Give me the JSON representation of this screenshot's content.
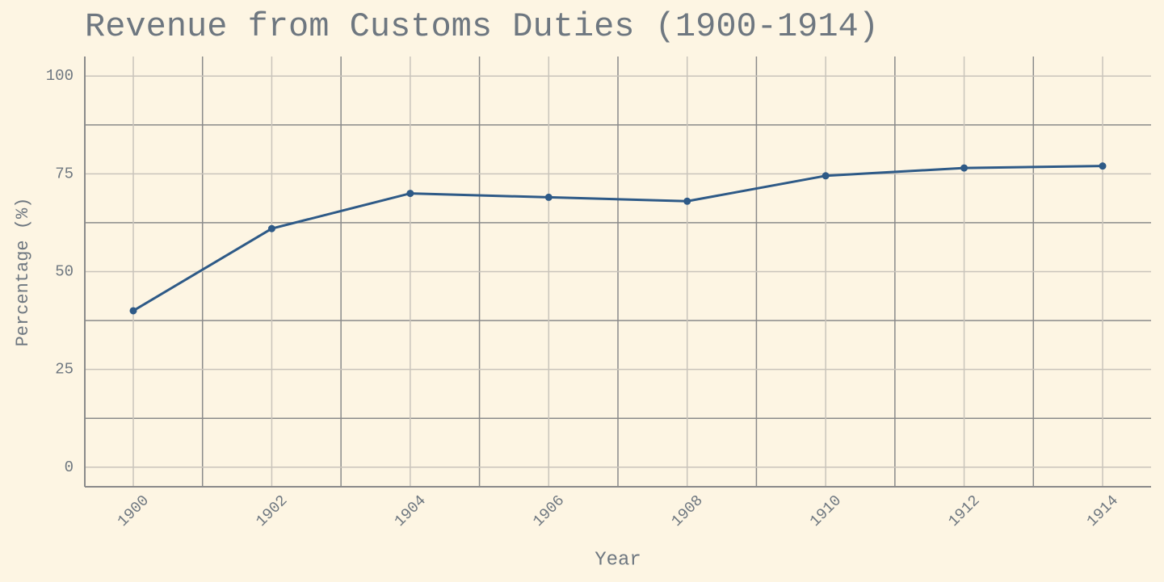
{
  "chart_data": {
    "type": "line",
    "title": "Revenue from Customs Duties (1900-1914)",
    "x_label": "Year",
    "y_label": "Percentage (%)",
    "x": [
      1900,
      1902,
      1904,
      1906,
      1908,
      1910,
      1912,
      1914
    ],
    "values": [
      40,
      61,
      70,
      69,
      68,
      74.5,
      76.5,
      77
    ],
    "color": "#2e5a87",
    "xlim": [
      1899.3,
      1914.7
    ],
    "xticks": [
      1900,
      1902,
      1904,
      1906,
      1908,
      1910,
      1912,
      1914
    ],
    "ylim": [
      -5,
      105
    ],
    "yticks": [
      0,
      25,
      50,
      75,
      100
    ],
    "grid": true
  }
}
